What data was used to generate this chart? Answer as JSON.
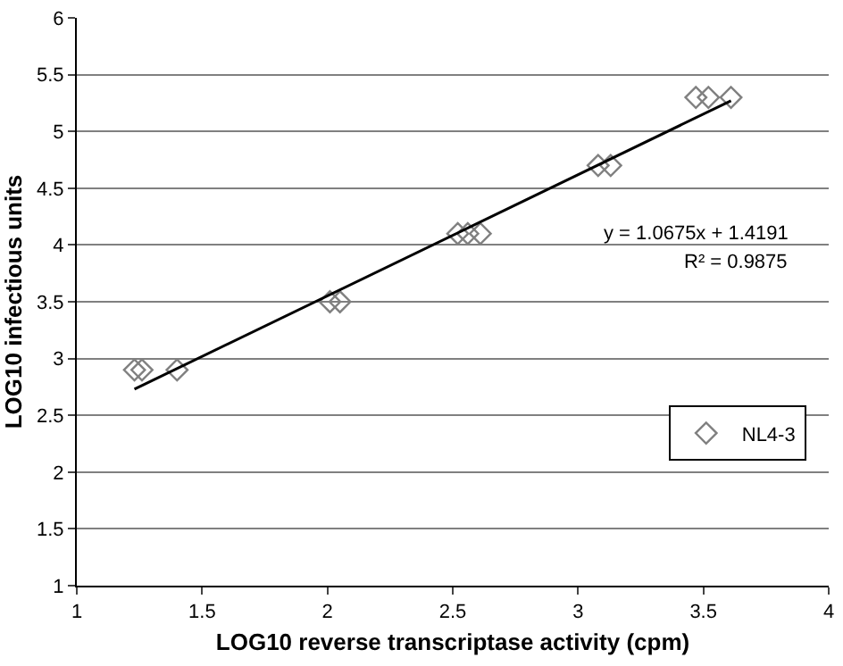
{
  "chart_data": {
    "type": "scatter",
    "xlabel": "LOG10 reverse transcriptase activity (cpm)",
    "ylabel": "LOG10 infectious units",
    "series": [
      {
        "name": "NL4-3",
        "color": "#808080",
        "marker": "diamond",
        "x": [
          1.23,
          1.26,
          1.4,
          2.01,
          2.05,
          2.52,
          2.56,
          2.61,
          3.08,
          3.13,
          3.47,
          3.52,
          3.61
        ],
        "values": [
          2.9,
          2.9,
          2.9,
          3.5,
          3.5,
          4.1,
          4.1,
          4.1,
          4.7,
          4.7,
          5.3,
          5.3,
          5.3
        ]
      },
      {
        "type": "line",
        "color": "#000000",
        "marker": "none",
        "x": [
          1.23,
          3.61
        ],
        "values": [
          2.73,
          5.27
        ]
      }
    ],
    "annotations": [
      "y = 1.0675x + 1.4191",
      "R² = 0.9875"
    ],
    "xlim": [
      1,
      4
    ],
    "xticks": [
      1,
      1.5,
      2,
      2.5,
      3,
      3.5,
      4
    ],
    "ylim": [
      1,
      6
    ],
    "yticks": [
      1,
      1.5,
      2,
      2.5,
      3,
      3.5,
      4,
      4.5,
      5,
      5.5,
      6
    ],
    "grid": "y",
    "legend": "bottom right"
  }
}
